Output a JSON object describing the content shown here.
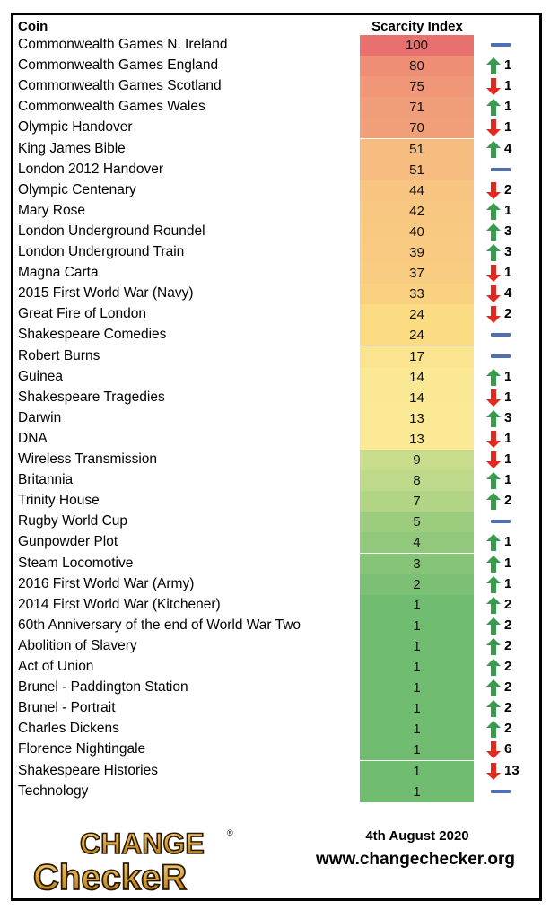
{
  "header": {
    "coin_label": "Coin",
    "score_label": "Scarcity Index"
  },
  "footer": {
    "date": "4th August 2020",
    "website": "www.changechecker.org",
    "logo_text": [
      "CHANGE",
      "CheckeR"
    ]
  },
  "colors": {
    "arrow_up": "#3a9a4f",
    "arrow_down": "#e02a20",
    "no_change": "#4f6fb5"
  },
  "chart_data": {
    "type": "table",
    "columns": [
      "Coin",
      "Scarcity Index",
      "Change"
    ],
    "rows": [
      {
        "coin": "Commonwealth Games N. Ireland",
        "score": "100",
        "direction": "same",
        "change": ""
      },
      {
        "coin": "Commonwealth Games England",
        "score": "80",
        "direction": "up",
        "change": "1"
      },
      {
        "coin": "Commonwealth Games Scotland",
        "score": "75",
        "direction": "down",
        "change": "1"
      },
      {
        "coin": "Commonwealth Games Wales",
        "score": "71",
        "direction": "up",
        "change": "1"
      },
      {
        "coin": "Olympic Handover",
        "score": "70",
        "direction": "down",
        "change": "1"
      },
      {
        "coin": "King James Bible",
        "score": "51",
        "direction": "up",
        "change": "4"
      },
      {
        "coin": "London 2012 Handover",
        "score": "51",
        "direction": "same",
        "change": ""
      },
      {
        "coin": "Olympic Centenary",
        "score": "44",
        "direction": "down",
        "change": "2"
      },
      {
        "coin": "Mary Rose",
        "score": "42",
        "direction": "up",
        "change": "1"
      },
      {
        "coin": "London Underground Roundel",
        "score": "40",
        "direction": "up",
        "change": "3"
      },
      {
        "coin": "London Underground Train",
        "score": "39",
        "direction": "up",
        "change": "3"
      },
      {
        "coin": "Magna Carta",
        "score": "37",
        "direction": "down",
        "change": "1"
      },
      {
        "coin": "2015 First World War (Navy)",
        "score": "33",
        "direction": "down",
        "change": "4"
      },
      {
        "coin": "Great Fire of London",
        "score": "24",
        "direction": "down",
        "change": "2"
      },
      {
        "coin": "Shakespeare Comedies",
        "score": "24",
        "direction": "same",
        "change": ""
      },
      {
        "coin": "Robert Burns",
        "score": "17",
        "direction": "same",
        "change": ""
      },
      {
        "coin": "Guinea",
        "score": "14",
        "direction": "up",
        "change": "1"
      },
      {
        "coin": "Shakespeare Tragedies",
        "score": "14",
        "direction": "down",
        "change": "1"
      },
      {
        "coin": "Darwin",
        "score": "13",
        "direction": "up",
        "change": "3"
      },
      {
        "coin": "DNA",
        "score": "13",
        "direction": "down",
        "change": "1"
      },
      {
        "coin": "Wireless Transmission",
        "score": "9",
        "direction": "down",
        "change": "1"
      },
      {
        "coin": "Britannia",
        "score": "8",
        "direction": "up",
        "change": "1"
      },
      {
        "coin": "Trinity House",
        "score": "7",
        "direction": "up",
        "change": "2"
      },
      {
        "coin": "Rugby World Cup",
        "score": "5",
        "direction": "same",
        "change": ""
      },
      {
        "coin": "Gunpowder Plot",
        "score": "4",
        "direction": "up",
        "change": "1"
      },
      {
        "coin": "Steam Locomotive",
        "score": "3",
        "direction": "up",
        "change": "1"
      },
      {
        "coin": "2016 First World War (Army)",
        "score": "2",
        "direction": "up",
        "change": "1"
      },
      {
        "coin": "2014 First World War (Kitchener)",
        "score": "1",
        "direction": "up",
        "change": "2"
      },
      {
        "coin": "60th Anniversary of the end of World War Two",
        "score": "1",
        "direction": "up",
        "change": "2"
      },
      {
        "coin": "Abolition of Slavery",
        "score": "1",
        "direction": "up",
        "change": "2"
      },
      {
        "coin": "Act of Union",
        "score": "1",
        "direction": "up",
        "change": "2"
      },
      {
        "coin": "Brunel - Paddington Station",
        "score": "1",
        "direction": "up",
        "change": "2"
      },
      {
        "coin": "Brunel - Portrait",
        "score": "1",
        "direction": "up",
        "change": "2"
      },
      {
        "coin": "Charles Dickens",
        "score": "1",
        "direction": "up",
        "change": "2"
      },
      {
        "coin": "Florence Nightingale",
        "score": "1",
        "direction": "down",
        "change": "6"
      },
      {
        "coin": "Shakespeare Histories",
        "score": "1",
        "direction": "down",
        "change": "13"
      },
      {
        "coin": "Technology",
        "score": "1",
        "direction": "same",
        "change": ""
      }
    ]
  }
}
